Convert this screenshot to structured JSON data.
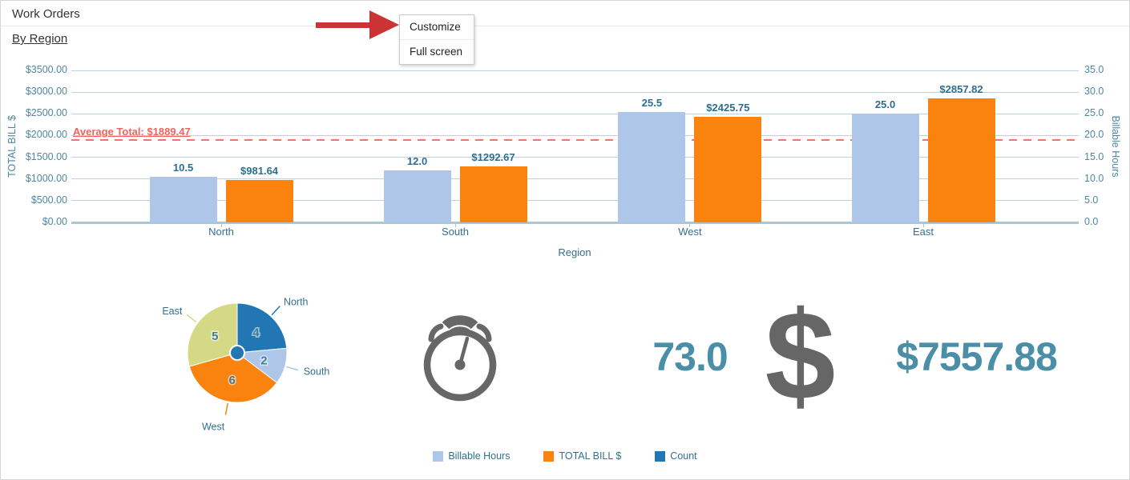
{
  "header": {
    "title": "Work Orders",
    "view_link": "By Region"
  },
  "context_menu": {
    "items": [
      "Customize",
      "Full screen"
    ]
  },
  "chart_data": [
    {
      "type": "bar",
      "xlabel": "Region",
      "categories": [
        "North",
        "South",
        "West",
        "East"
      ],
      "series": [
        {
          "name": "Billable Hours",
          "axis": "right",
          "color": "#aec7e8",
          "values": [
            10.5,
            12.0,
            25.5,
            25.0
          ],
          "labels": [
            "10.5",
            "12.0",
            "25.5",
            "25.0"
          ]
        },
        {
          "name": "TOTAL BILL $",
          "axis": "left",
          "color": "#fa820e",
          "values": [
            981.64,
            1292.67,
            2425.75,
            2857.82
          ],
          "labels": [
            "$981.64",
            "$1292.67",
            "$2425.75",
            "$2857.82"
          ]
        }
      ],
      "left_axis": {
        "title": "TOTAL BILL $",
        "min": 0,
        "max": 3500,
        "ticks": [
          "$0.00",
          "$500.00",
          "$1000.00",
          "$1500.00",
          "$2000.00",
          "$2500.00",
          "$3000.00",
          "$3500.00"
        ]
      },
      "right_axis": {
        "title": "Billable Hours",
        "min": 0,
        "max": 35,
        "ticks": [
          "0.0",
          "5.0",
          "10.0",
          "15.0",
          "20.0",
          "25.0",
          "30.0",
          "35.0"
        ]
      },
      "average_line": {
        "label": "Average Total: $1889.47",
        "value": 1889.47,
        "color": "#f4716d"
      },
      "grid": true,
      "legend_position": "bottom"
    },
    {
      "type": "pie",
      "series_name": "Count",
      "start_angle": "top",
      "direction": "clockwise",
      "slices": [
        {
          "label": "North",
          "value": 4,
          "color": "#2276b4"
        },
        {
          "label": "South",
          "value": 2,
          "color": "#aec7e8"
        },
        {
          "label": "West",
          "value": 6,
          "color": "#fa820e"
        },
        {
          "label": "East",
          "value": 5,
          "color": "#d5d985"
        }
      ],
      "center_dot_color": "#2276b4"
    }
  ],
  "kpis": [
    {
      "icon": "stopwatch-icon",
      "value": "73.0"
    },
    {
      "icon": "dollar-icon",
      "value": "$7557.88"
    }
  ],
  "legend": [
    {
      "label": "Billable Hours",
      "color": "#aec7e8"
    },
    {
      "label": "TOTAL BILL $",
      "color": "#fa820e"
    },
    {
      "label": "Count",
      "color": "#2276b4"
    }
  ],
  "colors": {
    "accent_text": "#4a8ea8",
    "icon_gray": "#666666",
    "axis_text": "#4f87a1",
    "category_text": "#31708f",
    "grid": "#bdd4e0",
    "axis_line": "#a9c8d7",
    "arrow_red": "#cb3434"
  }
}
